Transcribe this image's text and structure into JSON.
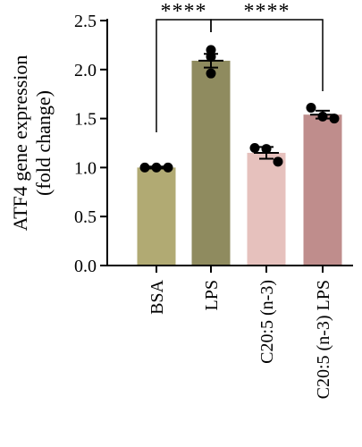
{
  "chart_data": {
    "type": "bar",
    "categories": [
      "BSA",
      "LPS",
      "C20:5 (n-3)",
      "C20:5 (n-3) LPS"
    ],
    "values": [
      1.0,
      2.09,
      1.15,
      1.54
    ],
    "errors": [
      0.01,
      0.07,
      0.06,
      0.04
    ],
    "points": [
      [
        1.0,
        1.0,
        1.0
      ],
      [
        2.2,
        2.13,
        1.96
      ],
      [
        1.2,
        1.19,
        1.06
      ],
      [
        1.61,
        1.52,
        1.5
      ]
    ],
    "colors": [
      "#b1aa73",
      "#8f8b5f",
      "#e6c1bd",
      "#bf8d8c"
    ],
    "ylabel_lines": [
      "ATF4 gene expression",
      "(fold change)"
    ],
    "yticks": [
      "0.0",
      "0.5",
      "1.0",
      "1.5",
      "2.0",
      "2.5"
    ],
    "ylim": [
      0,
      2.5
    ],
    "significance": [
      {
        "from": 0,
        "to": 1,
        "label": "****"
      },
      {
        "from": 1,
        "to": 3,
        "label": "****"
      }
    ],
    "grid": false,
    "legend": "none"
  }
}
